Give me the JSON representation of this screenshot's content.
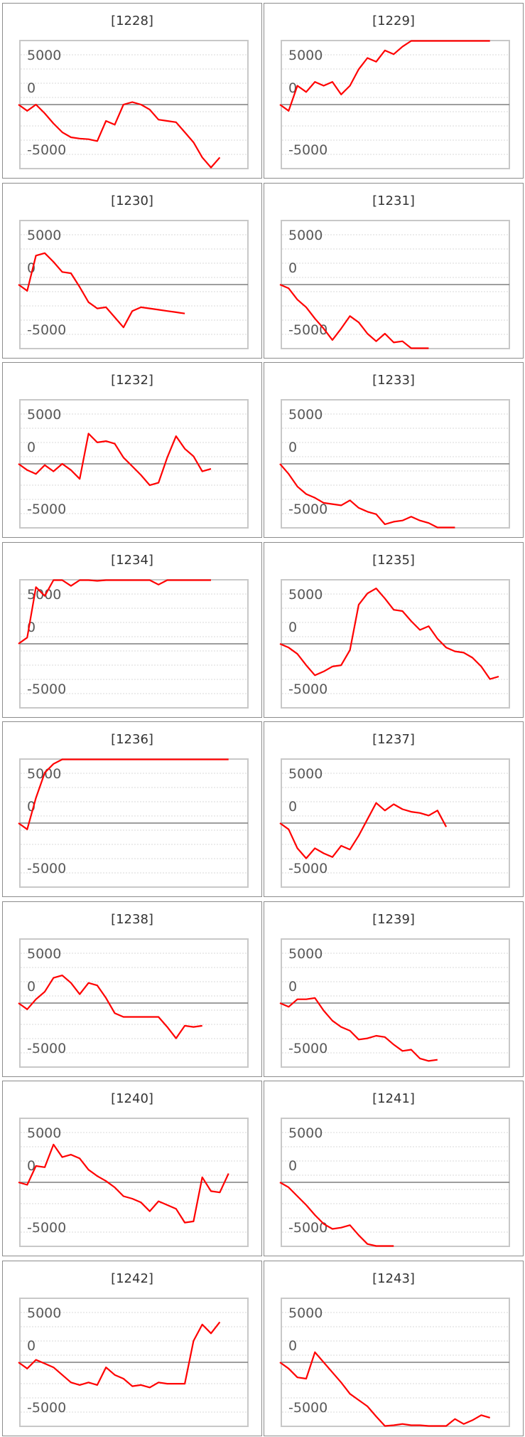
{
  "chart_data": [
    {
      "type": "line",
      "title": "[1228]",
      "ylim": [
        -6000,
        6000
      ],
      "yticks": [
        5000,
        0,
        -5000
      ],
      "color": "#ff0000",
      "values": [
        0,
        -500,
        0,
        -700,
        -1500,
        -2200,
        -2600,
        -2700,
        -2750,
        -2900,
        -1300,
        -1600,
        0,
        200,
        0,
        -400,
        -1200,
        -1300,
        -1400,
        -2200,
        -3000,
        -4200,
        -5000,
        -4200
      ]
    },
    {
      "type": "line",
      "title": "[1229]",
      "ylim": [
        -6000,
        6000
      ],
      "yticks": [
        5000,
        0,
        -5000
      ],
      "color": "#ff0000",
      "values": [
        0,
        -500,
        1500,
        1000,
        1800,
        1500,
        1800,
        800,
        1500,
        2800,
        3700,
        3400,
        4300,
        4000,
        4600,
        6900,
        7300,
        7300,
        7200,
        6800,
        7300,
        7600,
        7600,
        7600,
        7700
      ]
    },
    {
      "type": "line",
      "title": "[1230]",
      "ylim": [
        -6000,
        6000
      ],
      "yticks": [
        5000,
        0,
        -5000
      ],
      "color": "#ff0000",
      "values": [
        0,
        -500,
        2300,
        2500,
        1800,
        1000,
        900,
        -200,
        -1400,
        -1900,
        -1800,
        -2600,
        -3400,
        -2100,
        -1800,
        -1900,
        -2000,
        -2100,
        -2200,
        -2300
      ]
    },
    {
      "type": "line",
      "title": "[1231]",
      "ylim": [
        -6000,
        6000
      ],
      "yticks": [
        5000,
        0,
        -5000
      ],
      "color": "#ff0000",
      "values": [
        0,
        -300,
        -1200,
        -1800,
        -2700,
        -3500,
        -4400,
        -3500,
        -2500,
        -3000,
        -3900,
        -4500,
        -3900,
        -4600,
        -4500,
        -5500,
        -5900,
        -5800
      ]
    },
    {
      "type": "line",
      "title": "[1232]",
      "ylim": [
        -6000,
        6000
      ],
      "yticks": [
        5000,
        0,
        -5000
      ],
      "color": "#ff0000",
      "values": [
        0,
        -500,
        -800,
        -100,
        -600,
        0,
        -500,
        -1200,
        2400,
        1700,
        1800,
        1600,
        500,
        -200,
        -900,
        -1700,
        -1500,
        500,
        2200,
        1200,
        600,
        -600,
        -400
      ]
    },
    {
      "type": "line",
      "title": "[1233]",
      "ylim": [
        -6000,
        6000
      ],
      "yticks": [
        5000,
        0,
        -5000
      ],
      "color": "#ff0000",
      "values": [
        0,
        -800,
        -1800,
        -2400,
        -2700,
        -3100,
        -3200,
        -3300,
        -2900,
        -3500,
        -3800,
        -4000,
        -4800,
        -4600,
        -4500,
        -4200,
        -4500,
        -4700,
        -5300,
        -5700,
        -6100
      ]
    },
    {
      "type": "line",
      "title": "[1234]",
      "ylim": [
        -6000,
        6000
      ],
      "yticks": [
        5000,
        0,
        -5000
      ],
      "color": "#ff0000",
      "values": [
        0,
        500,
        4500,
        3800,
        5300,
        5100,
        4600,
        5300,
        5100,
        5000,
        6600,
        6100,
        6500,
        6300,
        5800,
        5200,
        4700,
        7000,
        7200,
        7300,
        7200,
        6700,
        6600
      ]
    },
    {
      "type": "line",
      "title": "[1235]",
      "ylim": [
        -6000,
        6000
      ],
      "yticks": [
        5000,
        0,
        -5000
      ],
      "color": "#ff0000",
      "values": [
        0,
        -300,
        -800,
        -1700,
        -2500,
        -2200,
        -1800,
        -1700,
        -500,
        3100,
        4000,
        4400,
        3600,
        2700,
        2600,
        1800,
        1100,
        1400,
        400,
        -300,
        -600,
        -700,
        -1100,
        -1800,
        -2800,
        -2600
      ]
    },
    {
      "type": "line",
      "title": "[1236]",
      "ylim": [
        -6000,
        6000
      ],
      "yticks": [
        5000,
        0,
        -5000
      ],
      "color": "#ff0000",
      "values": [
        0,
        -500,
        2000,
        4000,
        4700,
        7000,
        7200,
        7200,
        7200,
        7200,
        7200,
        7200,
        7200,
        7200,
        7200,
        7200,
        7200,
        7200,
        7200,
        7200,
        7200,
        7200,
        7200,
        7200,
        7200
      ]
    },
    {
      "type": "line",
      "title": "[1237]",
      "ylim": [
        -6000,
        6000
      ],
      "yticks": [
        5000,
        0,
        -5000
      ],
      "color": "#ff0000",
      "values": [
        0,
        -500,
        -2000,
        -2800,
        -2000,
        -2400,
        -2700,
        -1800,
        -2100,
        -1000,
        300,
        1600,
        1000,
        1500,
        1100,
        900,
        800,
        600,
        1000,
        -300
      ]
    },
    {
      "type": "line",
      "title": "[1238]",
      "ylim": [
        -6000,
        6000
      ],
      "yticks": [
        5000,
        0,
        -5000
      ],
      "color": "#ff0000",
      "values": [
        0,
        -500,
        300,
        900,
        2000,
        2200,
        1600,
        700,
        1600,
        1400,
        400,
        -800,
        -1100,
        -1100,
        -1100,
        -1100,
        -1100,
        -1900,
        -2800,
        -1800,
        -1900,
        -1800
      ]
    },
    {
      "type": "line",
      "title": "[1239]",
      "ylim": [
        -6000,
        6000
      ],
      "yticks": [
        5000,
        0,
        -5000
      ],
      "color": "#ff0000",
      "values": [
        0,
        -300,
        300,
        300,
        400,
        -600,
        -1400,
        -1900,
        -2200,
        -2900,
        -2800,
        -2600,
        -2700,
        -3300,
        -3800,
        -3700,
        -4400,
        -4600,
        -4500
      ]
    },
    {
      "type": "line",
      "title": "[1240]",
      "ylim": [
        -6000,
        6000
      ],
      "yticks": [
        5000,
        0,
        -5000
      ],
      "color": "#ff0000",
      "values": [
        0,
        -200,
        1300,
        1200,
        3000,
        2000,
        2200,
        1900,
        1000,
        500,
        100,
        -400,
        -1100,
        -1300,
        -1600,
        -2300,
        -1500,
        -1800,
        -2100,
        -3200,
        -3100,
        400,
        -700,
        -800,
        700
      ]
    },
    {
      "type": "line",
      "title": "[1241]",
      "ylim": [
        -6000,
        6000
      ],
      "yticks": [
        5000,
        0,
        -5000
      ],
      "color": "#ff0000",
      "values": [
        0,
        -400,
        -1100,
        -1800,
        -2600,
        -3300,
        -3700,
        -3600,
        -3400,
        -4200,
        -4900,
        -5700,
        -6100,
        -6200
      ]
    },
    {
      "type": "line",
      "title": "[1242]",
      "ylim": [
        -6000,
        6000
      ],
      "yticks": [
        5000,
        0,
        -5000
      ],
      "color": "#ff0000",
      "values": [
        0,
        -500,
        200,
        -100,
        -400,
        -1000,
        -1600,
        -1800,
        -1600,
        -1800,
        -400,
        -1000,
        -1300,
        -1900,
        -1800,
        -2000,
        -1600,
        -1700,
        -1700,
        -1700,
        1700,
        3000,
        2300,
        3200
      ]
    },
    {
      "type": "line",
      "title": "[1243]",
      "ylim": [
        -6000,
        6000
      ],
      "yticks": [
        5000,
        0,
        -5000
      ],
      "color": "#ff0000",
      "values": [
        0,
        -500,
        -1200,
        -1300,
        800,
        0,
        -800,
        -1600,
        -2500,
        -3000,
        -3500,
        -4300,
        -5100,
        -5000,
        -4900,
        -5000,
        -5000,
        -5200,
        -5700,
        -5800,
        -4500,
        -4900,
        -4600,
        -4200,
        -4400
      ]
    }
  ]
}
